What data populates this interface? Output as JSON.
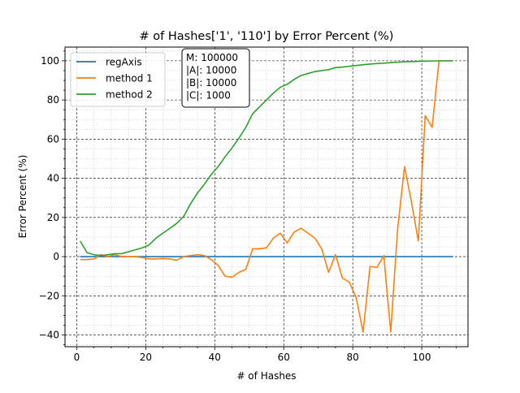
{
  "chart_data": {
    "type": "line",
    "title": "# of Hashes['1', '110'] by Error Percent (%)",
    "xlabel": "# of Hashes",
    "ylabel": "Error Percent (%)",
    "xlim": [
      -3.4,
      113.4
    ],
    "ylim": [
      -46,
      107
    ],
    "x_ticks": [
      0,
      20,
      40,
      60,
      80,
      100
    ],
    "x_tick_labels": [
      "0",
      "20",
      "40",
      "60",
      "80",
      "100"
    ],
    "y_ticks": [
      -40,
      -20,
      0,
      20,
      40,
      60,
      80,
      100
    ],
    "y_tick_labels": [
      "−40",
      "−20",
      "0",
      "20",
      "40",
      "60",
      "80",
      "100"
    ],
    "grid": true,
    "legend_position": "top-left",
    "annotation": {
      "lines": [
        "M: 100000",
        "|A|: 10000",
        "|B|: 10000",
        "|C|: 1000"
      ],
      "position": "top-center"
    },
    "series": [
      {
        "name": "regAxis",
        "color": "#1f77b4",
        "points": [
          [
            1,
            0
          ],
          [
            109,
            0
          ]
        ]
      },
      {
        "name": "method 1",
        "color": "#ff7f0e",
        "points": [
          [
            1,
            -1.5
          ],
          [
            3,
            -1.5
          ],
          [
            5,
            -1.2
          ],
          [
            7,
            1.0
          ],
          [
            9,
            0
          ],
          [
            11,
            1.0
          ],
          [
            13,
            0
          ],
          [
            15,
            0
          ],
          [
            17,
            0
          ],
          [
            19,
            -0.5
          ],
          [
            21,
            -1.2
          ],
          [
            23,
            -1.2
          ],
          [
            25,
            -1.0
          ],
          [
            27,
            -1.2
          ],
          [
            29,
            -1.8
          ],
          [
            31,
            0
          ],
          [
            33,
            0.5
          ],
          [
            35,
            1.0
          ],
          [
            37,
            0.5
          ],
          [
            39,
            -1.5
          ],
          [
            41,
            -4.5
          ],
          [
            43,
            -10
          ],
          [
            45,
            -10.5
          ],
          [
            47,
            -8
          ],
          [
            49,
            -6.5
          ],
          [
            51,
            4
          ],
          [
            53,
            4
          ],
          [
            55,
            4.5
          ],
          [
            57,
            9.5
          ],
          [
            59,
            12
          ],
          [
            61,
            7
          ],
          [
            63,
            12.5
          ],
          [
            65,
            14.5
          ],
          [
            67,
            12
          ],
          [
            69,
            9.5
          ],
          [
            71,
            4
          ],
          [
            73,
            -8
          ],
          [
            75,
            1
          ],
          [
            77,
            -11
          ],
          [
            79,
            -13
          ],
          [
            81,
            -21
          ],
          [
            83,
            -38.5
          ],
          [
            85,
            -5
          ],
          [
            87,
            -5.5
          ],
          [
            89,
            0.5
          ],
          [
            91,
            -38.5
          ],
          [
            93,
            14
          ],
          [
            95,
            46
          ],
          [
            97,
            28
          ],
          [
            99,
            8
          ],
          [
            101,
            72
          ],
          [
            103,
            66
          ],
          [
            105,
            100
          ],
          [
            107,
            100
          ],
          [
            109,
            100
          ]
        ]
      },
      {
        "name": "method 2",
        "color": "#2ca02c",
        "points": [
          [
            1,
            8
          ],
          [
            3,
            2
          ],
          [
            5,
            1
          ],
          [
            7,
            0.5
          ],
          [
            9,
            1
          ],
          [
            11,
            1.5
          ],
          [
            13,
            1.5
          ],
          [
            15,
            2.5
          ],
          [
            17,
            3.5
          ],
          [
            19,
            4.5
          ],
          [
            21,
            6
          ],
          [
            23,
            9.5
          ],
          [
            25,
            12
          ],
          [
            27,
            14.5
          ],
          [
            29,
            17
          ],
          [
            31,
            20.5
          ],
          [
            33,
            27
          ],
          [
            35,
            32.5
          ],
          [
            37,
            37
          ],
          [
            39,
            42
          ],
          [
            41,
            46
          ],
          [
            43,
            51
          ],
          [
            45,
            55.5
          ],
          [
            47,
            60.5
          ],
          [
            49,
            66
          ],
          [
            51,
            73
          ],
          [
            53,
            76.5
          ],
          [
            55,
            80
          ],
          [
            57,
            83.5
          ],
          [
            59,
            86.5
          ],
          [
            61,
            88
          ],
          [
            63,
            90.5
          ],
          [
            65,
            92.5
          ],
          [
            67,
            93.5
          ],
          [
            69,
            94.5
          ],
          [
            71,
            95
          ],
          [
            73,
            95.5
          ],
          [
            75,
            96.5
          ],
          [
            77,
            96.8
          ],
          [
            79,
            97.2
          ],
          [
            81,
            97.6
          ],
          [
            83,
            98
          ],
          [
            85,
            98.3
          ],
          [
            87,
            98.6
          ],
          [
            89,
            98.8
          ],
          [
            91,
            99.1
          ],
          [
            93,
            99.3
          ],
          [
            95,
            99.5
          ],
          [
            97,
            99.6
          ],
          [
            99,
            99.7
          ],
          [
            101,
            99.8
          ],
          [
            103,
            99.9
          ],
          [
            105,
            100
          ],
          [
            107,
            100
          ],
          [
            109,
            100
          ]
        ]
      }
    ]
  }
}
